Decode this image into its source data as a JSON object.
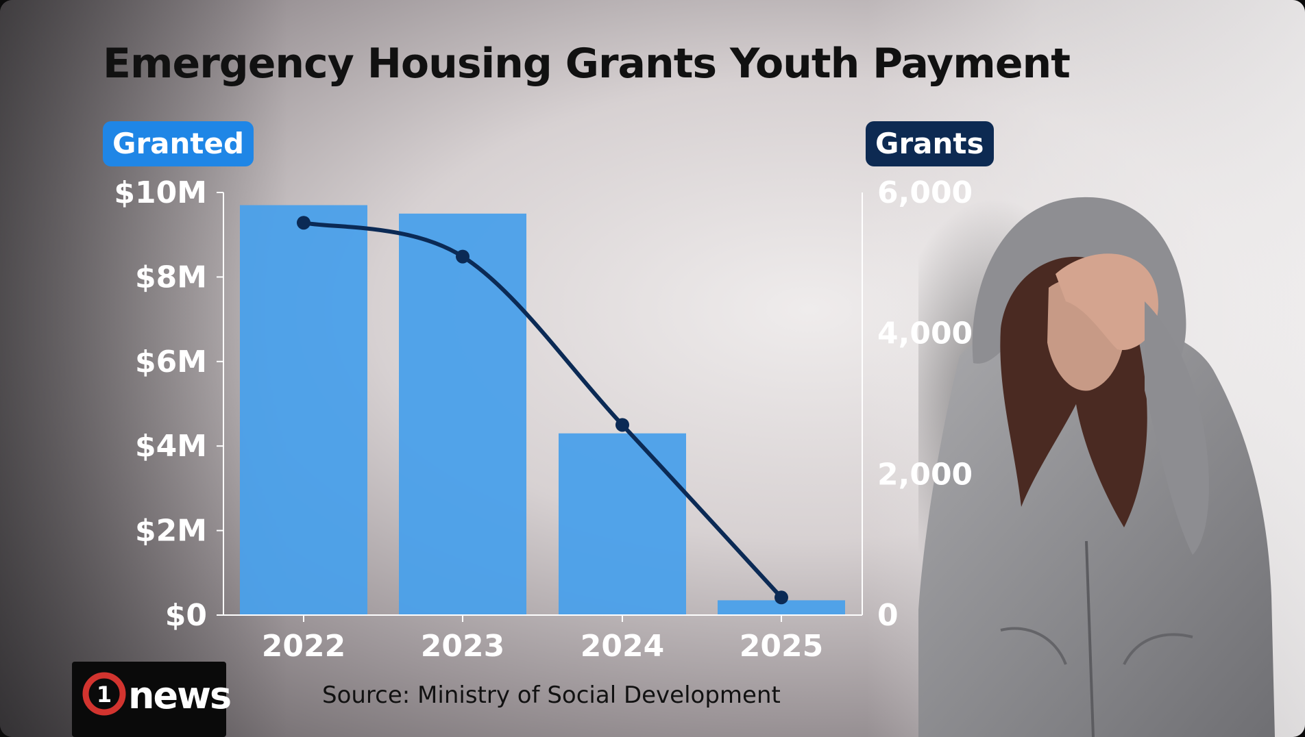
{
  "title": "Emergency Housing Grants Youth Payment",
  "left_axis_label": "Granted",
  "right_axis_label": "Grants",
  "source": "Source: Ministry of Social Development",
  "logo": {
    "number": "1",
    "text": "news"
  },
  "colors": {
    "bar": "#4aa0ea",
    "line": "#0b2a55",
    "granted_pill": "#1f86e6",
    "grants_pill": "#0d2a52",
    "tick_text": "#ffffff"
  },
  "illustration": "hooded-person-photo",
  "chart_data": {
    "type": "bar",
    "categories": [
      "2022",
      "2023",
      "2024",
      "2025"
    ],
    "series": [
      {
        "kind": "bar",
        "axis": "left",
        "values": [
          9.7,
          9.5,
          4.3,
          0.35
        ]
      },
      {
        "kind": "line",
        "axis": "right",
        "values": [
          5570,
          5090,
          2700,
          250
        ]
      }
    ],
    "left_axis": {
      "ticks": [
        "$0",
        "$2M",
        "$4M",
        "$6M",
        "$8M",
        "$10M"
      ],
      "ylim": [
        0,
        10
      ]
    },
    "right_axis": {
      "ticks": [
        "0",
        "2,000",
        "4,000",
        "6,000"
      ],
      "ylim": [
        0,
        6000
      ]
    },
    "grid": false,
    "legend": "none"
  }
}
